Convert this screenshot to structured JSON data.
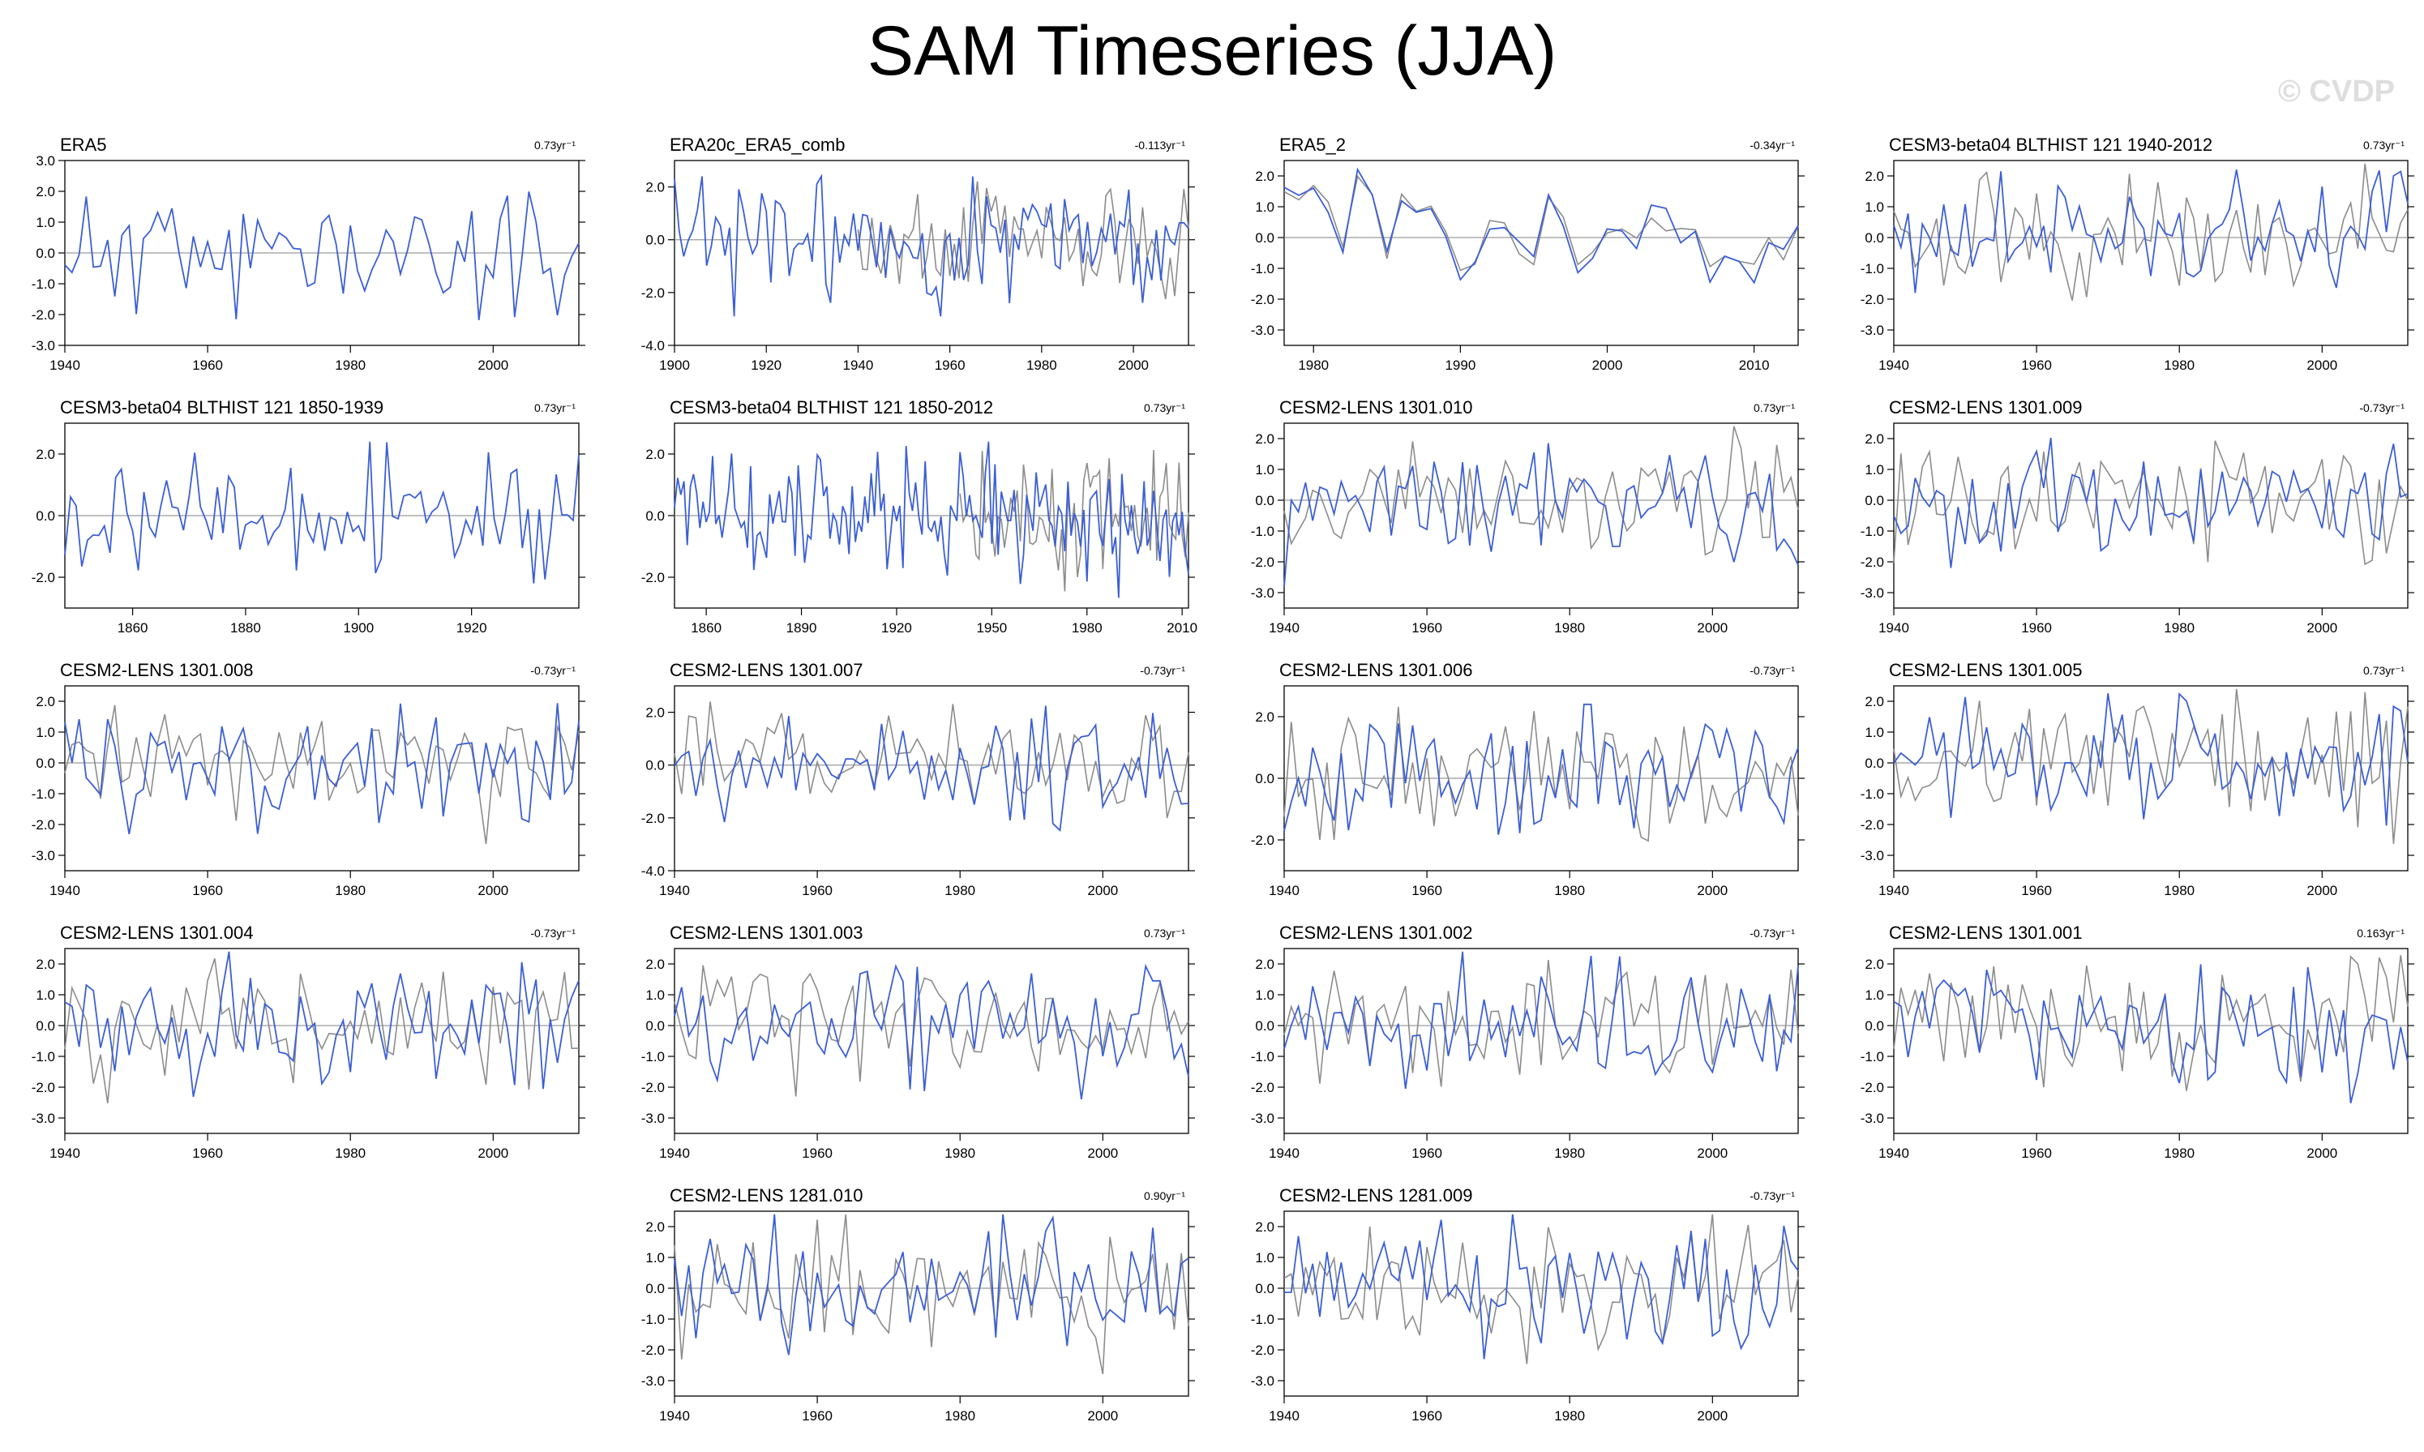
{
  "page": {
    "title": "SAM Timeseries (JJA)",
    "watermark": "© CVDP"
  },
  "colors": {
    "model": "#3b5fd6",
    "reference": "#8c8c8c",
    "axis": "#000000",
    "zero_line": "#9a9a9a"
  },
  "chart_data": [
    {
      "type": "line",
      "title": "ERA5",
      "trend": "0.73yr⁻¹",
      "x_range": [
        1940,
        2012
      ],
      "x_ticks": [
        1940,
        1960,
        1980,
        2000
      ],
      "ylim": [
        -3,
        3
      ],
      "y_ticks": [
        "3.0",
        "2.0",
        "1.0",
        "0.0",
        "-1.0",
        "-2.0",
        "-3.0"
      ],
      "y_tick_values": [
        3,
        2,
        1,
        0,
        -1,
        -2,
        -3
      ],
      "has_reference": false,
      "seed": 11,
      "amp": 1.0
    },
    {
      "type": "line",
      "title": "ERA20c_ERA5_comb",
      "trend": "-0.113yr⁻¹",
      "x_range": [
        1900,
        2012
      ],
      "x_ticks": [
        1900,
        1920,
        1940,
        1960,
        1980,
        2000
      ],
      "ylim": [
        -4,
        3
      ],
      "y_ticks": [
        "2.0",
        "0.0",
        "-2.0",
        "-4.0"
      ],
      "y_tick_values": [
        2,
        0,
        -2,
        -4
      ],
      "has_reference": true,
      "ref_start": 1940,
      "seed": 23,
      "amp": 1.2
    },
    {
      "type": "line",
      "title": "ERA5_2",
      "trend": "-0.34yr⁻¹",
      "x_range": [
        1978,
        2013
      ],
      "x_ticks": [
        1980,
        1990,
        2000,
        2010
      ],
      "ylim": [
        -3.5,
        2.5
      ],
      "y_ticks": [
        "2.0",
        "1.0",
        "0.0",
        "-1.0",
        "-2.0",
        "-3.0"
      ],
      "y_tick_values": [
        2,
        1,
        0,
        -1,
        -2,
        -3
      ],
      "has_reference": true,
      "ref_start": 1978,
      "seed": 37,
      "amp": 1.0,
      "smooth_copy": true
    },
    {
      "type": "line",
      "title": "CESM3-beta04 BLTHIST 121 1940-2012",
      "trend": "0.73yr⁻¹",
      "x_range": [
        1940,
        2012
      ],
      "x_ticks": [
        1940,
        1960,
        1980,
        2000
      ],
      "ylim": [
        -3.5,
        2.5
      ],
      "y_ticks": [
        "2.0",
        "1.0",
        "0.0",
        "-1.0",
        "-2.0",
        "-3.0"
      ],
      "y_tick_values": [
        2,
        1,
        0,
        -1,
        -2,
        -3
      ],
      "has_reference": true,
      "ref_start": 1940,
      "seed": 41,
      "amp": 1.0
    },
    {
      "type": "line",
      "title": "CESM3-beta04 BLTHIST 121 1850-1939",
      "trend": "0.73yr⁻¹",
      "x_range": [
        1848,
        1939
      ],
      "x_ticks": [
        1860,
        1880,
        1900,
        1920
      ],
      "ylim": [
        -3,
        3
      ],
      "y_ticks": [
        "2.0",
        "0.0",
        "-2.0"
      ],
      "y_tick_values": [
        2,
        0,
        -2
      ],
      "has_reference": false,
      "seed": 53,
      "amp": 1.0
    },
    {
      "type": "line",
      "title": "CESM3-beta04 BLTHIST 121 1850-2012",
      "trend": "0.73yr⁻¹",
      "x_range": [
        1850,
        2012
      ],
      "x_ticks": [
        1860,
        1890,
        1920,
        1950,
        1980,
        2010
      ],
      "ylim": [
        -3,
        3
      ],
      "y_ticks": [
        "2.0",
        "0.0",
        "-2.0"
      ],
      "y_tick_values": [
        2,
        0,
        -2
      ],
      "has_reference": true,
      "ref_start": 1940,
      "seed": 61,
      "amp": 1.0
    },
    {
      "type": "line",
      "title": "CESM2-LENS 1301.010",
      "trend": "0.73yr⁻¹",
      "x_range": [
        1940,
        2012
      ],
      "x_ticks": [
        1940,
        1960,
        1980,
        2000
      ],
      "ylim": [
        -3.5,
        2.5
      ],
      "y_ticks": [
        "2.0",
        "1.0",
        "0.0",
        "-1.0",
        "-2.0",
        "-3.0"
      ],
      "y_tick_values": [
        2,
        1,
        0,
        -1,
        -2,
        -3
      ],
      "has_reference": true,
      "ref_start": 1940,
      "seed": 71,
      "amp": 1.0
    },
    {
      "type": "line",
      "title": "CESM2-LENS 1301.009",
      "trend": "-0.73yr⁻¹",
      "x_range": [
        1940,
        2012
      ],
      "x_ticks": [
        1940,
        1960,
        1980,
        2000
      ],
      "ylim": [
        -3.5,
        2.5
      ],
      "y_ticks": [
        "2.0",
        "1.0",
        "0.0",
        "-1.0",
        "-2.0",
        "-3.0"
      ],
      "y_tick_values": [
        2,
        1,
        0,
        -1,
        -2,
        -3
      ],
      "has_reference": true,
      "ref_start": 1940,
      "seed": 83,
      "amp": 1.0
    },
    {
      "type": "line",
      "title": "CESM2-LENS 1301.008",
      "trend": "-0.73yr⁻¹",
      "x_range": [
        1940,
        2012
      ],
      "x_ticks": [
        1940,
        1960,
        1980,
        2000
      ],
      "ylim": [
        -3.5,
        2.5
      ],
      "y_ticks": [
        "2.0",
        "1.0",
        "0.0",
        "-1.0",
        "-2.0",
        "-3.0"
      ],
      "y_tick_values": [
        2,
        1,
        0,
        -1,
        -2,
        -3
      ],
      "has_reference": true,
      "ref_start": 1940,
      "seed": 97,
      "amp": 1.1
    },
    {
      "type": "line",
      "title": "CESM2-LENS 1301.007",
      "trend": "-0.73yr⁻¹",
      "x_range": [
        1940,
        2012
      ],
      "x_ticks": [
        1940,
        1960,
        1980,
        2000
      ],
      "ylim": [
        -4,
        3
      ],
      "y_ticks": [
        "2.0",
        "0.0",
        "-2.0",
        "-4.0"
      ],
      "y_tick_values": [
        2,
        0,
        -2,
        -4
      ],
      "has_reference": true,
      "ref_start": 1940,
      "seed": 101,
      "amp": 1.1
    },
    {
      "type": "line",
      "title": "CESM2-LENS 1301.006",
      "trend": "-0.73yr⁻¹",
      "x_range": [
        1940,
        2012
      ],
      "x_ticks": [
        1940,
        1960,
        1980,
        2000
      ],
      "ylim": [
        -3,
        3
      ],
      "y_ticks": [
        "2.0",
        "0.0",
        "-2.0"
      ],
      "y_tick_values": [
        2,
        0,
        -2
      ],
      "has_reference": true,
      "ref_start": 1940,
      "seed": 113,
      "amp": 1.0
    },
    {
      "type": "line",
      "title": "CESM2-LENS 1301.005",
      "trend": "0.73yr⁻¹",
      "x_range": [
        1940,
        2012
      ],
      "x_ticks": [
        1940,
        1960,
        1980,
        2000
      ],
      "ylim": [
        -3.5,
        2.5
      ],
      "y_ticks": [
        "2.0",
        "1.0",
        "0.0",
        "-1.0",
        "-2.0",
        "-3.0"
      ],
      "y_tick_values": [
        2,
        1,
        0,
        -1,
        -2,
        -3
      ],
      "has_reference": true,
      "ref_start": 1940,
      "seed": 127,
      "amp": 1.0
    },
    {
      "type": "line",
      "title": "CESM2-LENS 1301.004",
      "trend": "-0.73yr⁻¹",
      "x_range": [
        1940,
        2012
      ],
      "x_ticks": [
        1940,
        1960,
        1980,
        2000
      ],
      "ylim": [
        -3.5,
        2.5
      ],
      "y_ticks": [
        "2.0",
        "1.0",
        "0.0",
        "-1.0",
        "-2.0",
        "-3.0"
      ],
      "y_tick_values": [
        2,
        1,
        0,
        -1,
        -2,
        -3
      ],
      "has_reference": true,
      "ref_start": 1940,
      "seed": 131,
      "amp": 1.0
    },
    {
      "type": "line",
      "title": "CESM2-LENS 1301.003",
      "trend": "0.73yr⁻¹",
      "x_range": [
        1940,
        2012
      ],
      "x_ticks": [
        1940,
        1960,
        1980,
        2000
      ],
      "ylim": [
        -3.5,
        2.5
      ],
      "y_ticks": [
        "2.0",
        "1.0",
        "0.0",
        "-1.0",
        "-2.0",
        "-3.0"
      ],
      "y_tick_values": [
        2,
        1,
        0,
        -1,
        -2,
        -3
      ],
      "has_reference": true,
      "ref_start": 1940,
      "seed": 139,
      "amp": 1.0
    },
    {
      "type": "line",
      "title": "CESM2-LENS 1301.002",
      "trend": "-0.73yr⁻¹",
      "x_range": [
        1940,
        2012
      ],
      "x_ticks": [
        1940,
        1960,
        1980,
        2000
      ],
      "ylim": [
        -3.5,
        2.5
      ],
      "y_ticks": [
        "2.0",
        "1.0",
        "0.0",
        "-1.0",
        "-2.0",
        "-3.0"
      ],
      "y_tick_values": [
        2,
        1,
        0,
        -1,
        -2,
        -3
      ],
      "has_reference": true,
      "ref_start": 1940,
      "seed": 149,
      "amp": 1.0
    },
    {
      "type": "line",
      "title": "CESM2-LENS 1301.001",
      "trend": "0.163yr⁻¹",
      "x_range": [
        1940,
        2012
      ],
      "x_ticks": [
        1940,
        1960,
        1980,
        2000
      ],
      "ylim": [
        -3.5,
        2.5
      ],
      "y_ticks": [
        "2.0",
        "1.0",
        "0.0",
        "-1.0",
        "-2.0",
        "-3.0"
      ],
      "y_tick_values": [
        2,
        1,
        0,
        -1,
        -2,
        -3
      ],
      "has_reference": true,
      "ref_start": 1940,
      "seed": 157,
      "amp": 1.0
    },
    {
      "type": "line",
      "title": "CESM2-LENS 1281.010",
      "trend": "0.90yr⁻¹",
      "x_range": [
        1940,
        2012
      ],
      "x_ticks": [
        1940,
        1960,
        1980,
        2000
      ],
      "ylim": [
        -3.5,
        2.5
      ],
      "y_ticks": [
        "2.0",
        "1.0",
        "0.0",
        "-1.0",
        "-2.0",
        "-3.0"
      ],
      "y_tick_values": [
        2,
        1,
        0,
        -1,
        -2,
        -3
      ],
      "has_reference": true,
      "ref_start": 1940,
      "seed": 163,
      "amp": 1.0
    },
    {
      "type": "line",
      "title": "CESM2-LENS 1281.009",
      "trend": "-0.73yr⁻¹",
      "x_range": [
        1940,
        2012
      ],
      "x_ticks": [
        1940,
        1960,
        1980,
        2000
      ],
      "ylim": [
        -3.5,
        2.5
      ],
      "y_ticks": [
        "2.0",
        "1.0",
        "0.0",
        "-1.0",
        "-2.0",
        "-3.0"
      ],
      "y_tick_values": [
        2,
        1,
        0,
        -1,
        -2,
        -3
      ],
      "has_reference": true,
      "ref_start": 1940,
      "seed": 173,
      "amp": 1.0
    }
  ]
}
